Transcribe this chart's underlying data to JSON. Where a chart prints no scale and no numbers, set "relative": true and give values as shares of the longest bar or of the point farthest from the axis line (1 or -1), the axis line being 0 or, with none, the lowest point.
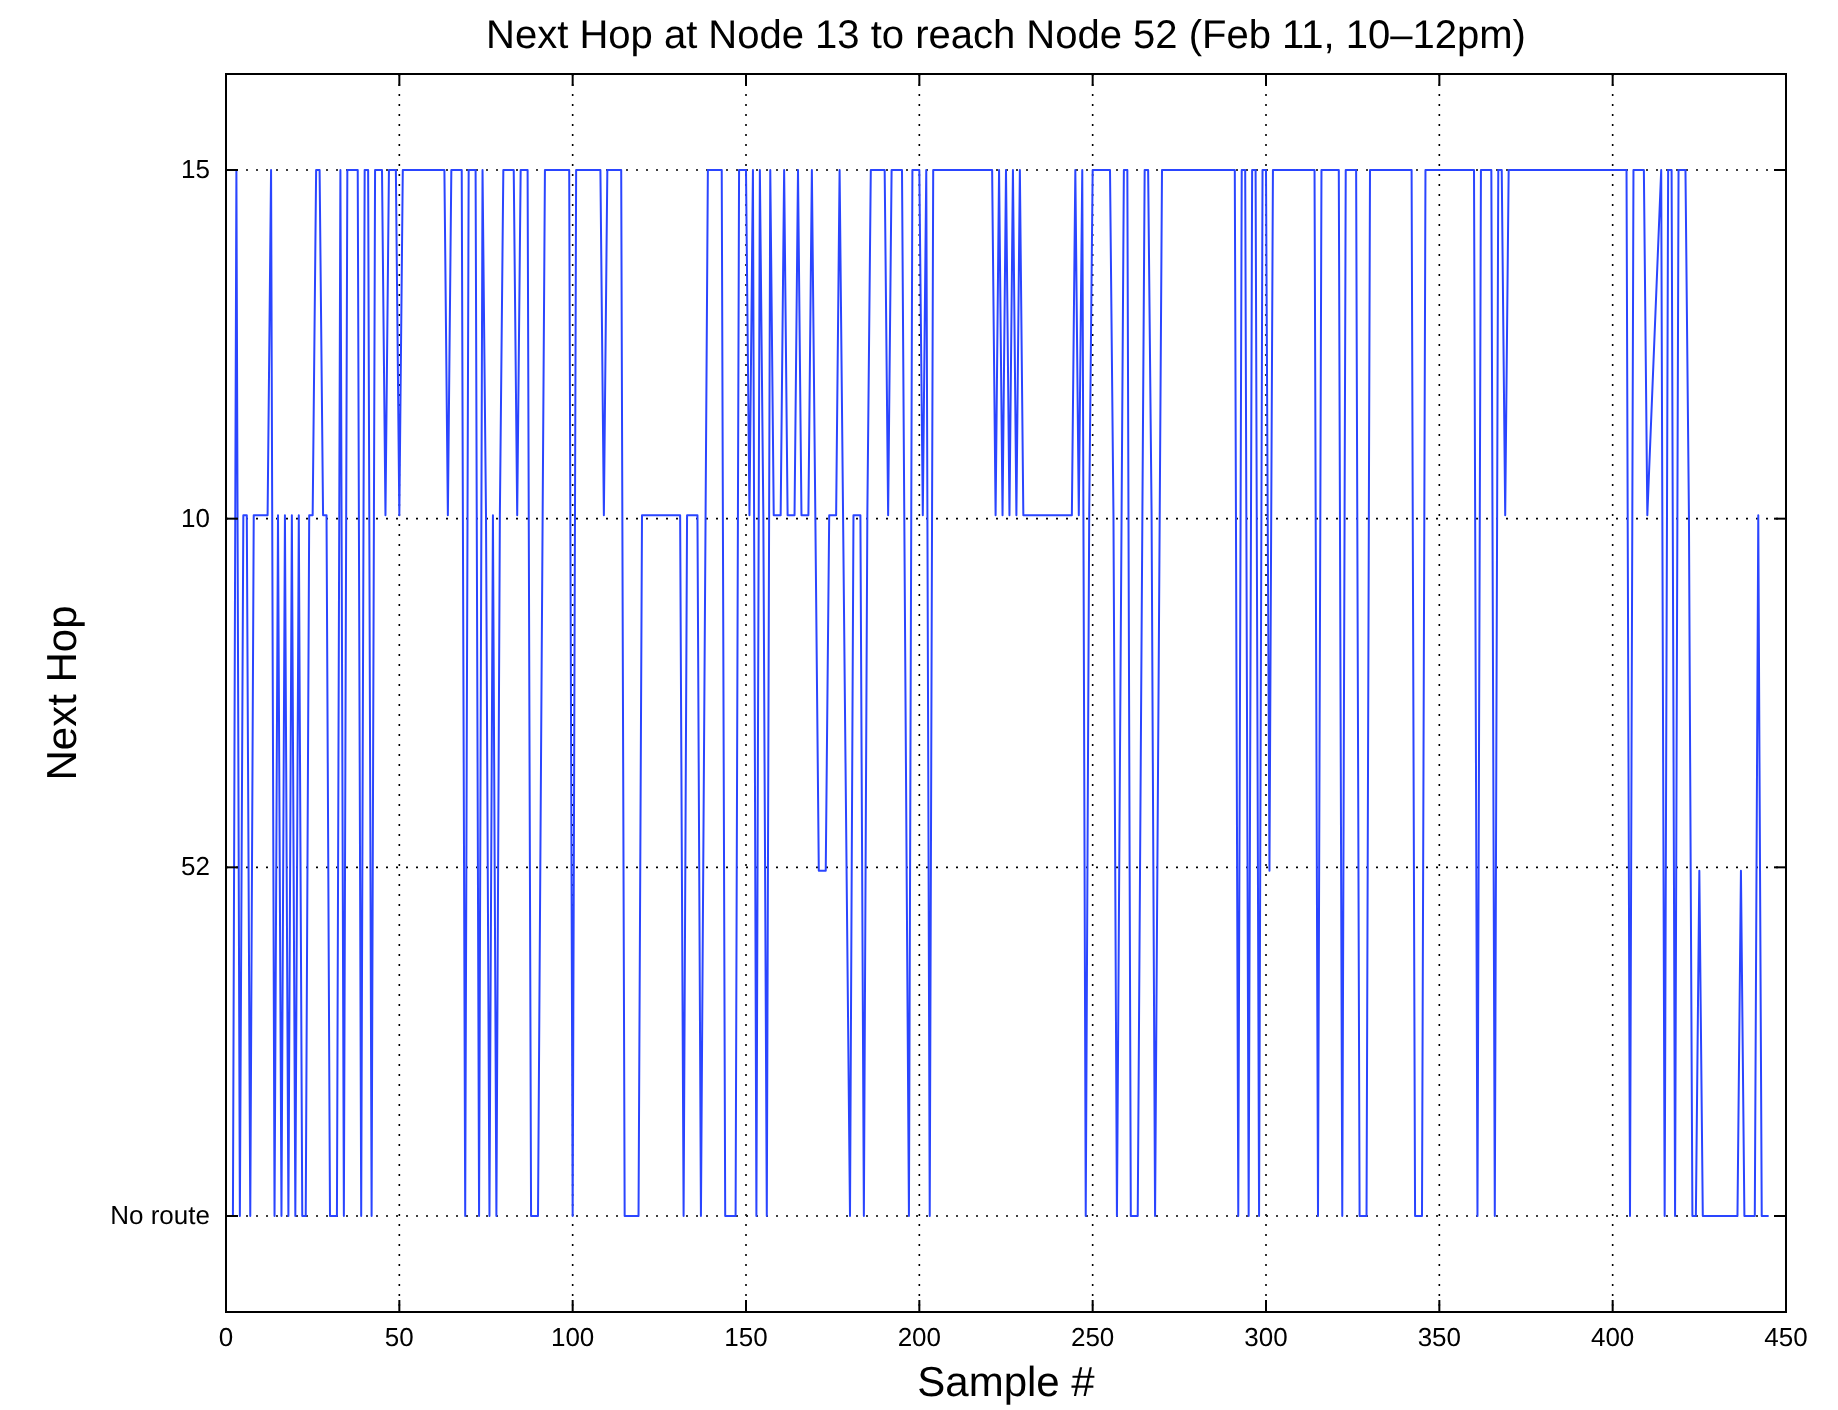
{
  "chart_data": {
    "type": "line",
    "title": "Next Hop at Node 13 to reach Node 52 (Feb 11, 10–12pm)",
    "xlabel": "Sample #",
    "ylabel": "Next Hop",
    "xlim": [
      0,
      450
    ],
    "xticks": [
      0,
      50,
      100,
      150,
      200,
      250,
      300,
      350,
      400,
      450
    ],
    "relative": true,
    "annotations": [
      "No route",
      "52",
      "10",
      "15"
    ],
    "grid": true,
    "line_style": "solid",
    "marker": "none",
    "series": [
      {
        "color": "#2a45ff",
        "x": [
          0,
          2,
          3,
          4,
          5,
          6,
          7,
          8,
          12,
          13,
          14,
          15,
          16,
          17,
          18,
          19,
          20,
          21,
          22,
          23,
          24,
          25,
          26,
          27,
          28,
          29,
          30,
          32,
          33,
          34,
          35,
          38,
          39,
          40,
          41,
          42,
          43,
          45,
          46,
          47,
          49,
          50,
          51,
          63,
          64,
          65,
          68,
          69,
          70,
          72,
          73,
          74,
          75,
          76,
          77,
          78,
          79,
          80,
          83,
          84,
          85,
          87,
          88,
          90,
          92,
          99,
          100,
          101,
          108,
          109,
          110,
          114,
          115,
          119,
          120,
          131,
          132,
          133,
          136,
          137,
          139,
          143,
          144,
          147,
          148,
          150,
          151,
          152,
          153,
          154,
          155,
          156,
          157,
          158,
          160,
          161,
          162,
          164,
          165,
          166,
          168,
          169,
          170,
          171,
          173,
          174,
          176,
          177,
          178,
          180,
          181,
          183,
          184,
          185,
          186,
          187,
          190,
          191,
          192,
          195,
          197,
          198,
          200,
          201,
          202,
          203,
          204,
          221,
          222,
          223,
          224,
          225,
          226,
          227,
          228,
          229,
          230,
          232,
          244,
          245,
          246,
          247,
          248,
          249,
          250,
          252,
          255,
          256,
          257,
          259,
          260,
          261,
          263,
          265,
          266,
          267,
          268,
          270,
          291,
          292,
          293,
          294,
          295,
          296,
          297,
          298,
          299,
          300,
          301,
          302,
          314,
          315,
          316,
          321,
          322,
          323,
          326,
          327,
          329,
          330,
          342,
          343,
          345,
          346,
          360,
          361,
          362,
          365,
          366,
          367,
          368,
          369,
          370,
          404,
          405,
          406,
          409,
          410,
          414,
          415,
          416,
          417,
          418,
          419,
          420,
          421,
          422,
          423,
          424,
          425,
          426,
          436,
          437,
          438,
          441,
          442,
          443,
          445
        ],
        "values": [
          0,
          0,
          1,
          0,
          0.67,
          0.67,
          0,
          0.67,
          0.67,
          1,
          0,
          0.67,
          0,
          0.67,
          0,
          0.67,
          0,
          0.67,
          0,
          0,
          0.67,
          0.67,
          1,
          1,
          0.67,
          0.67,
          0,
          0,
          1,
          0,
          1,
          1,
          0,
          1,
          1,
          0,
          1,
          1,
          0.67,
          1,
          1,
          0.67,
          1,
          1,
          0.67,
          1,
          1,
          0,
          1,
          1,
          0,
          1,
          0.67,
          0,
          0.67,
          0,
          0.67,
          1,
          1,
          0.67,
          1,
          1,
          0,
          0,
          1,
          1,
          0,
          1,
          1,
          0.67,
          1,
          1,
          0,
          0,
          0.67,
          0.67,
          0,
          0.67,
          0.67,
          0,
          1,
          1,
          0,
          0,
          1,
          1,
          0.67,
          1,
          0,
          1,
          0.67,
          0,
          1,
          0.67,
          0.67,
          1,
          0.67,
          0.67,
          1,
          0.67,
          0.67,
          1,
          0.67,
          0.33,
          0.33,
          0.67,
          0.67,
          1,
          0.67,
          0,
          0.67,
          0.67,
          0,
          0.67,
          1,
          1,
          1,
          0.67,
          1,
          1,
          0,
          1,
          1,
          0.67,
          1,
          0,
          1,
          1,
          0.67,
          1,
          0.67,
          1,
          0.67,
          1,
          0.67,
          1,
          0.67,
          0.67,
          0.67,
          1,
          0.67,
          1,
          0,
          0.67,
          1,
          1,
          1,
          0.67,
          0,
          1,
          1,
          0,
          0,
          1,
          1,
          0.67,
          0,
          1,
          1,
          0,
          1,
          1,
          0,
          1,
          1,
          0,
          1,
          1,
          0.33,
          1,
          1,
          0,
          1,
          1,
          0,
          1,
          1,
          0,
          0,
          1,
          1,
          0,
          0,
          1,
          1,
          0,
          1,
          1,
          0,
          1,
          1,
          0.67,
          1,
          1,
          0,
          1,
          1,
          0.67,
          1,
          0,
          1,
          1,
          0,
          1,
          1,
          1,
          0.67,
          0,
          0,
          0.33,
          0,
          0,
          0.33,
          0,
          0,
          0.67,
          0,
          0
        ]
      }
    ]
  }
}
